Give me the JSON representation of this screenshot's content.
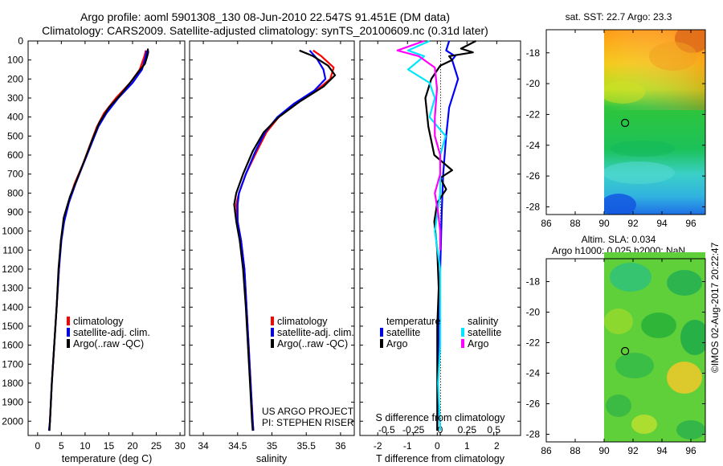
{
  "header": {
    "title_line1": "Argo profile: aoml 5901308_130 08-Jun-2010 22.547S 91.451E (DM data)",
    "title_line2": "Climatology: CARS2009. Satellite-adjusted climatology: synTS_20100609.nc (0.31d later)"
  },
  "colors": {
    "climatology": "#ff0000",
    "satellite": "#0000ff",
    "argo": "#000000",
    "cyan": "#00e5ff",
    "magenta": "#ff00ff"
  },
  "chart_data": [
    {
      "id": "temperature",
      "type": "line",
      "xlabel": "temperature (deg C)",
      "ylabel": "",
      "xlim": [
        -2,
        31
      ],
      "ylim": [
        2075,
        0
      ],
      "xticks": [
        "0",
        "5",
        "10",
        "15",
        "20",
        "25",
        "30"
      ],
      "yticks": [
        "0",
        "100",
        "200",
        "300",
        "400",
        "500",
        "600",
        "700",
        "800",
        "900",
        "1000",
        "1100",
        "1200",
        "1300",
        "1400",
        "1500",
        "1600",
        "1700",
        "1800",
        "1900",
        "2000"
      ],
      "legend": [
        "climatology",
        "satellite-adj. clim.",
        "Argo(..raw -QC)"
      ],
      "series": [
        {
          "name": "climatology",
          "color": "red",
          "points": [
            [
              22.8,
              50
            ],
            [
              22.5,
              80
            ],
            [
              21.5,
              150
            ],
            [
              19.5,
              220
            ],
            [
              16.5,
              300
            ],
            [
              14,
              380
            ],
            [
              12.5,
              450
            ],
            [
              11,
              550
            ],
            [
              9.5,
              650
            ],
            [
              7.8,
              750
            ],
            [
              6.5,
              850
            ],
            [
              5.5,
              950
            ],
            [
              4.9,
              1050
            ],
            [
              4.5,
              1200
            ],
            [
              4.0,
              1400
            ],
            [
              3.5,
              1600
            ],
            [
              3.0,
              1800
            ],
            [
              2.6,
              2000
            ],
            [
              2.4,
              2050
            ]
          ]
        },
        {
          "name": "satellite-adj. clim.",
          "color": "blue",
          "points": [
            [
              23.0,
              50
            ],
            [
              22.8,
              80
            ],
            [
              22.0,
              150
            ],
            [
              20.0,
              220
            ],
            [
              17.0,
              300
            ],
            [
              14.5,
              380
            ],
            [
              12.8,
              450
            ],
            [
              11.2,
              550
            ],
            [
              9.6,
              650
            ],
            [
              8.0,
              750
            ],
            [
              6.6,
              850
            ],
            [
              5.6,
              950
            ],
            [
              5.0,
              1050
            ],
            [
              4.5,
              1200
            ],
            [
              4.0,
              1400
            ],
            [
              3.5,
              1600
            ],
            [
              3.0,
              1800
            ],
            [
              2.6,
              2000
            ],
            [
              2.4,
              2050
            ]
          ]
        },
        {
          "name": "Argo(..raw -QC)",
          "color": "black",
          "points": [
            [
              23.2,
              40
            ],
            [
              23.3,
              60
            ],
            [
              23.1,
              80
            ],
            [
              22.6,
              120
            ],
            [
              21.3,
              160
            ],
            [
              19.8,
              210
            ],
            [
              17.2,
              290
            ],
            [
              15.0,
              350
            ],
            [
              13.0,
              430
            ],
            [
              11.5,
              520
            ],
            [
              10.0,
              620
            ],
            [
              8.4,
              720
            ],
            [
              6.8,
              820
            ],
            [
              5.5,
              930
            ],
            [
              4.9,
              1050
            ],
            [
              4.4,
              1200
            ],
            [
              4.0,
              1400
            ],
            [
              3.5,
              1600
            ],
            [
              3.0,
              1800
            ],
            [
              2.6,
              2000
            ],
            [
              2.5,
              2050
            ]
          ]
        }
      ]
    },
    {
      "id": "salinity",
      "type": "line",
      "xlabel": "salinity",
      "xlim": [
        33.8,
        36.2
      ],
      "ylim": [
        2075,
        0
      ],
      "xticks": [
        "34",
        "34.5",
        "35",
        "35.5",
        "36"
      ],
      "legend": [
        "climatology",
        "satellite-adj. clim.",
        "Argo(..raw -QC)"
      ],
      "series": [
        {
          "name": "climatology",
          "color": "red",
          "points": [
            [
              35.6,
              50
            ],
            [
              35.72,
              80
            ],
            [
              35.9,
              140
            ],
            [
              35.85,
              200
            ],
            [
              35.65,
              260
            ],
            [
              35.35,
              330
            ],
            [
              35.1,
              400
            ],
            [
              34.92,
              480
            ],
            [
              34.78,
              580
            ],
            [
              34.62,
              700
            ],
            [
              34.52,
              800
            ],
            [
              34.48,
              860
            ],
            [
              34.5,
              950
            ],
            [
              34.55,
              1050
            ],
            [
              34.6,
              1200
            ],
            [
              34.63,
              1400
            ],
            [
              34.66,
              1600
            ],
            [
              34.69,
              1800
            ],
            [
              34.72,
              2000
            ],
            [
              34.73,
              2050
            ]
          ]
        },
        {
          "name": "satellite-adj. clim.",
          "color": "blue",
          "points": [
            [
              35.55,
              50
            ],
            [
              35.65,
              90
            ],
            [
              35.75,
              150
            ],
            [
              35.78,
              200
            ],
            [
              35.62,
              260
            ],
            [
              35.32,
              330
            ],
            [
              35.08,
              400
            ],
            [
              34.9,
              480
            ],
            [
              34.76,
              580
            ],
            [
              34.62,
              700
            ],
            [
              34.52,
              800
            ],
            [
              34.5,
              860
            ],
            [
              34.5,
              950
            ],
            [
              34.55,
              1050
            ],
            [
              34.6,
              1200
            ],
            [
              34.63,
              1400
            ],
            [
              34.66,
              1600
            ],
            [
              34.69,
              1800
            ],
            [
              34.72,
              2000
            ],
            [
              34.73,
              2050
            ]
          ]
        },
        {
          "name": "Argo(..raw -QC)",
          "color": "black",
          "points": [
            [
              35.4,
              50
            ],
            [
              35.6,
              80
            ],
            [
              35.82,
              130
            ],
            [
              35.92,
              180
            ],
            [
              35.75,
              240
            ],
            [
              35.4,
              320
            ],
            [
              35.1,
              400
            ],
            [
              34.88,
              480
            ],
            [
              34.72,
              580
            ],
            [
              34.58,
              700
            ],
            [
              34.48,
              800
            ],
            [
              34.45,
              860
            ],
            [
              34.48,
              950
            ],
            [
              34.53,
              1050
            ],
            [
              34.58,
              1200
            ],
            [
              34.62,
              1400
            ],
            [
              34.65,
              1600
            ],
            [
              34.68,
              1800
            ],
            [
              34.71,
              2000
            ],
            [
              34.72,
              2050
            ]
          ]
        }
      ]
    },
    {
      "id": "difference",
      "type": "line",
      "xlabel": "T difference from climatology",
      "xlabel_top": "S difference from climatology",
      "xlim_T": [
        -2.6,
        2.8
      ],
      "xticks_T": [
        "-2",
        "-1",
        "0",
        "1",
        "2"
      ],
      "xlim_S": [
        -0.75,
        0.75
      ],
      "xticks_S": [
        "-0.5",
        "-0.25",
        "0",
        "0.25",
        "0.5"
      ],
      "ylim": [
        2075,
        0
      ],
      "legend": {
        "temperature_header": "temperature",
        "salinity_header": "salinity",
        "satellite": "satellite",
        "argo": "Argo"
      },
      "series": [
        {
          "name": "temperature satellite",
          "color": "blue",
          "points": [
            [
              0.4,
              0
            ],
            [
              0.3,
              50
            ],
            [
              0.6,
              80
            ],
            [
              0.5,
              100
            ],
            [
              0.6,
              150
            ],
            [
              0.7,
              200
            ],
            [
              0.6,
              250
            ],
            [
              0.4,
              350
            ],
            [
              0.3,
              500
            ],
            [
              0.2,
              700
            ],
            [
              0.15,
              900
            ],
            [
              0.1,
              1200
            ],
            [
              0.05,
              1500
            ],
            [
              0.0,
              2050
            ]
          ]
        },
        {
          "name": "temperature Argo",
          "color": "black",
          "points": [
            [
              1.3,
              0
            ],
            [
              0.8,
              40
            ],
            [
              1.2,
              60
            ],
            [
              0.4,
              80
            ],
            [
              0.5,
              100
            ],
            [
              0.1,
              130
            ],
            [
              -0.2,
              200
            ],
            [
              -0.4,
              300
            ],
            [
              -0.3,
              450
            ],
            [
              -0.1,
              600
            ],
            [
              0.5,
              680
            ],
            [
              0.1,
              720
            ],
            [
              0.3,
              780
            ],
            [
              0.0,
              850
            ],
            [
              -0.1,
              950
            ],
            [
              0.0,
              1100
            ],
            [
              0.05,
              1300
            ],
            [
              0.0,
              1500
            ],
            [
              0.0,
              2050
            ]
          ]
        },
        {
          "name": "salinity satellite",
          "color": "cyan",
          "points": [
            [
              -0.1,
              0
            ],
            [
              -0.3,
              50
            ],
            [
              -0.15,
              80
            ],
            [
              -0.3,
              150
            ],
            [
              -0.1,
              220
            ],
            [
              -0.05,
              300
            ],
            [
              -0.1,
              400
            ],
            [
              0.05,
              500
            ],
            [
              0.0,
              600
            ],
            [
              0.0,
              800
            ],
            [
              -0.05,
              1000
            ],
            [
              0.0,
              1200
            ],
            [
              0.0,
              1400
            ],
            [
              0.0,
              1600
            ],
            [
              -0.02,
              1800
            ],
            [
              0.0,
              2050
            ]
          ]
        },
        {
          "name": "salinity Argo",
          "color": "magenta",
          "points": [
            [
              -0.15,
              0
            ],
            [
              -0.4,
              50
            ],
            [
              -0.2,
              80
            ],
            [
              -0.05,
              140
            ],
            [
              -0.03,
              250
            ],
            [
              -0.05,
              400
            ],
            [
              -0.05,
              500
            ],
            [
              0.0,
              600
            ],
            [
              0.0,
              700
            ],
            [
              -0.05,
              800
            ],
            [
              -0.02,
              900
            ],
            [
              0.0,
              1000
            ],
            [
              0.0,
              1100
            ]
          ]
        }
      ]
    },
    {
      "id": "sst_map",
      "type": "heatmap",
      "title": "sat. SST: 22.7 Argo: 23.3",
      "xlim": [
        86,
        97
      ],
      "ylim": [
        -28.5,
        -16.5
      ],
      "xticks": [
        "86",
        "88",
        "90",
        "92",
        "94",
        "96"
      ],
      "yticks": [
        "-18",
        "-20",
        "-22",
        "-24",
        "-26",
        "-28"
      ],
      "data_x_start": 90,
      "marker": {
        "lon": 91.45,
        "lat": -22.55
      }
    },
    {
      "id": "sla_map",
      "type": "heatmap",
      "title_line1": "Altim. SLA: 0.034",
      "title_line2": "Argo h1000: 0.025 h2000: NaN",
      "xlim": [
        86,
        97
      ],
      "ylim": [
        -28.5,
        -16.5
      ],
      "xticks": [
        "86",
        "88",
        "90",
        "92",
        "94",
        "96"
      ],
      "yticks": [
        "-18",
        "-20",
        "-22",
        "-24",
        "-26",
        "-28"
      ],
      "data_x_start": 90,
      "marker": {
        "lon": 91.45,
        "lat": -22.55
      }
    }
  ],
  "annotations": {
    "project_line1": "US ARGO PROJECT",
    "project_line2": "PI: STEPHEN RISER",
    "stamp": "©IMOS 02-Aug-2017 20:22:47"
  }
}
